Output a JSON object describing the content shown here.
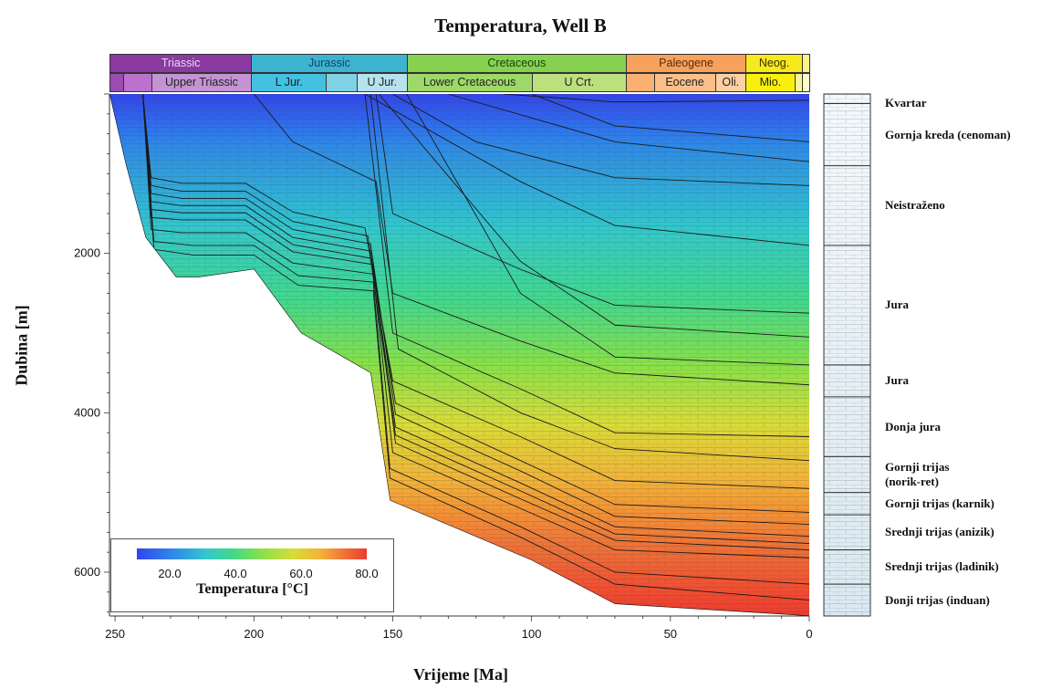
{
  "chart_data": {
    "type": "heatmap",
    "title": "Temperatura, Well B",
    "xlabel": "Vrijeme [Ma]",
    "ylabel": "Dubina [m]",
    "xlim": [
      252,
      0
    ],
    "ylim": [
      0,
      6550
    ],
    "x_ticks": [
      "250",
      "200",
      "150",
      "100",
      "50",
      "0"
    ],
    "x_tick_values": [
      250,
      200,
      150,
      100,
      50,
      0
    ],
    "y_ticks": [
      "2000",
      "4000",
      "6000"
    ],
    "y_tick_values": [
      2000,
      4000,
      6000
    ],
    "colorbar": {
      "label": "Temperatura [°C]",
      "ticks": [
        "20.0",
        "40.0",
        "60.0",
        "80.0"
      ],
      "range": [
        10,
        80
      ],
      "colors": [
        "#3344ee",
        "#2f8ae8",
        "#33c8cc",
        "#44d88a",
        "#8ae04a",
        "#d8dc3a",
        "#f3b238",
        "#f07438",
        "#ee3a30"
      ]
    },
    "periods": [
      {
        "label": "Triassic",
        "start": 252,
        "end": 201,
        "color": "#8a3aa0",
        "text": "#e8d8f0"
      },
      {
        "label": "Jurassic",
        "start": 201,
        "end": 145,
        "color": "#3cb4d0",
        "text": "#1a3f66"
      },
      {
        "label": "Cretaceous",
        "start": 145,
        "end": 66,
        "color": "#86d250",
        "text": "#1a4010"
      },
      {
        "label": "Paleogene",
        "start": 66,
        "end": 23,
        "color": "#f7a15c",
        "text": "#5a2a08"
      },
      {
        "label": "Neog.",
        "start": 23,
        "end": 2.6,
        "color": "#f8e81e",
        "text": "#333300"
      },
      {
        "label": "",
        "start": 2.6,
        "end": 0,
        "color": "#f8f48a",
        "text": "#333300"
      }
    ],
    "epochs": [
      {
        "label": "",
        "start": 252,
        "end": 247,
        "color": "#9a4cb0"
      },
      {
        "label": "",
        "start": 247,
        "end": 237,
        "color": "#bb72cc"
      },
      {
        "label": "Upper Triassic",
        "start": 237,
        "end": 201,
        "color": "#c393d4"
      },
      {
        "label": "L Jur.",
        "start": 201,
        "end": 174,
        "color": "#44c0e0"
      },
      {
        "label": "",
        "start": 174,
        "end": 163,
        "color": "#80d2e6"
      },
      {
        "label": "U Jur.",
        "start": 163,
        "end": 145,
        "color": "#b6e2ee"
      },
      {
        "label": "Lower Cretaceous",
        "start": 145,
        "end": 100,
        "color": "#9ed868"
      },
      {
        "label": "U Crt.",
        "start": 100,
        "end": 66,
        "color": "#bce07e"
      },
      {
        "label": "",
        "start": 66,
        "end": 56,
        "color": "#f9b070"
      },
      {
        "label": "Eocene",
        "start": 56,
        "end": 34,
        "color": "#fbc08a"
      },
      {
        "label": "Oli.",
        "start": 34,
        "end": 23,
        "color": "#fcd0a2"
      },
      {
        "label": "Mio.",
        "start": 23,
        "end": 5.3,
        "color": "#f8f00c"
      },
      {
        "label": "",
        "start": 5.3,
        "end": 2.6,
        "color": "#f8f498"
      },
      {
        "label": "",
        "start": 2.6,
        "end": 0,
        "color": "#fbfac8"
      }
    ],
    "burial_curves": [
      {
        "name": "base",
        "points": [
          [
            252,
            0
          ],
          [
            246,
            900
          ],
          [
            239,
            1800
          ],
          [
            228,
            2300
          ],
          [
            220,
            2300
          ],
          [
            200,
            2200
          ],
          [
            183,
            3000
          ],
          [
            158,
            3500
          ],
          [
            151,
            5100
          ],
          [
            100,
            5850
          ],
          [
            70,
            6400
          ],
          [
            0,
            6550
          ]
        ]
      },
      {
        "points": [
          [
            240,
            0
          ],
          [
            237,
            1050
          ],
          [
            226,
            1120
          ],
          [
            203,
            1120
          ],
          [
            186,
            1480
          ],
          [
            160,
            1680
          ],
          [
            150,
            3600
          ],
          [
            104,
            4300
          ],
          [
            70,
            4850
          ],
          [
            0,
            4950
          ]
        ]
      },
      {
        "points": [
          [
            240,
            0
          ],
          [
            237,
            1150
          ],
          [
            226,
            1220
          ],
          [
            203,
            1220
          ],
          [
            186,
            1600
          ],
          [
            159,
            1780
          ],
          [
            149,
            3880
          ],
          [
            104,
            4600
          ],
          [
            70,
            5150
          ],
          [
            0,
            5250
          ]
        ]
      },
      {
        "points": [
          [
            240,
            0
          ],
          [
            237,
            1250
          ],
          [
            226,
            1310
          ],
          [
            203,
            1310
          ],
          [
            186,
            1700
          ],
          [
            158,
            1880
          ],
          [
            149,
            4020
          ],
          [
            104,
            4730
          ],
          [
            70,
            5300
          ],
          [
            0,
            5400
          ]
        ]
      },
      {
        "points": [
          [
            240,
            0
          ],
          [
            237,
            1350
          ],
          [
            226,
            1400
          ],
          [
            203,
            1400
          ],
          [
            186,
            1800
          ],
          [
            158,
            1970
          ],
          [
            149,
            4180
          ],
          [
            104,
            4880
          ],
          [
            70,
            5430
          ],
          [
            0,
            5550
          ]
        ]
      },
      {
        "points": [
          [
            240,
            0
          ],
          [
            237,
            1450
          ],
          [
            226,
            1490
          ],
          [
            203,
            1490
          ],
          [
            186,
            1890
          ],
          [
            158,
            2060
          ],
          [
            149,
            4280
          ],
          [
            104,
            4980
          ],
          [
            70,
            5520
          ],
          [
            0,
            5640
          ]
        ]
      },
      {
        "points": [
          [
            240,
            0
          ],
          [
            237,
            1550
          ],
          [
            226,
            1580
          ],
          [
            203,
            1580
          ],
          [
            186,
            1980
          ],
          [
            157,
            2140
          ],
          [
            149,
            4380
          ],
          [
            104,
            5080
          ],
          [
            70,
            5600
          ],
          [
            0,
            5720
          ]
        ]
      },
      {
        "points": [
          [
            240,
            0
          ],
          [
            237,
            1700
          ],
          [
            226,
            1740
          ],
          [
            203,
            1740
          ],
          [
            186,
            2120
          ],
          [
            157,
            2260
          ],
          [
            150,
            4500
          ],
          [
            104,
            5200
          ],
          [
            70,
            5720
          ],
          [
            0,
            5820
          ]
        ]
      },
      {
        "points": [
          [
            240,
            0
          ],
          [
            236,
            1850
          ],
          [
            222,
            1900
          ],
          [
            200,
            1900
          ],
          [
            184,
            2280
          ],
          [
            157,
            2360
          ],
          [
            151,
            4700
          ],
          [
            104,
            5430
          ],
          [
            70,
            6000
          ],
          [
            0,
            6150
          ]
        ]
      },
      {
        "points": [
          [
            240,
            0
          ],
          [
            236,
            1950
          ],
          [
            222,
            2020
          ],
          [
            200,
            2020
          ],
          [
            184,
            2400
          ],
          [
            157,
            2470
          ],
          [
            151,
            4820
          ],
          [
            104,
            5560
          ],
          [
            70,
            6150
          ],
          [
            0,
            6350
          ]
        ]
      },
      {
        "points": [
          [
            200,
            0
          ],
          [
            186,
            600
          ],
          [
            156,
            1100
          ],
          [
            150,
            2500
          ],
          [
            104,
            3100
          ],
          [
            70,
            3500
          ],
          [
            0,
            3650
          ]
        ]
      },
      {
        "points": [
          [
            160,
            0
          ],
          [
            150,
            3000
          ],
          [
            104,
            3700
          ],
          [
            70,
            4250
          ],
          [
            0,
            4300
          ]
        ]
      },
      {
        "points": [
          [
            158,
            0
          ],
          [
            148,
            3200
          ],
          [
            104,
            4000
          ],
          [
            70,
            4450
          ],
          [
            0,
            4600
          ]
        ]
      },
      {
        "points": [
          [
            156,
            0
          ],
          [
            150,
            1500
          ],
          [
            104,
            2200
          ],
          [
            70,
            2650
          ],
          [
            0,
            2750
          ]
        ]
      },
      {
        "points": [
          [
            150,
            0
          ],
          [
            120,
            600
          ],
          [
            70,
            1050
          ],
          [
            0,
            1150
          ]
        ]
      },
      {
        "points": [
          [
            100,
            0
          ],
          [
            70,
            400
          ],
          [
            0,
            600
          ]
        ]
      },
      {
        "points": [
          [
            130,
            0
          ],
          [
            70,
            600
          ],
          [
            0,
            850
          ]
        ]
      },
      {
        "points": [
          [
            160,
            0
          ],
          [
            104,
            1100
          ],
          [
            70,
            1650
          ],
          [
            0,
            1900
          ]
        ]
      },
      {
        "points": [
          [
            155,
            0
          ],
          [
            104,
            2100
          ],
          [
            70,
            2900
          ],
          [
            0,
            3050
          ]
        ]
      },
      {
        "points": [
          [
            145,
            0
          ],
          [
            104,
            2500
          ],
          [
            70,
            3300
          ],
          [
            0,
            3400
          ]
        ]
      },
      {
        "points": [
          [
            110,
            0
          ],
          [
            70,
            100
          ],
          [
            0,
            80
          ]
        ]
      }
    ]
  },
  "stratigraphy": [
    {
      "label": "Kvartar",
      "top": 0,
      "bottom": 120
    },
    {
      "label": "Gornja kreda (cenoman)",
      "top": 120,
      "bottom": 900
    },
    {
      "label": "Neistraženo",
      "top": 900,
      "bottom": 1900
    },
    {
      "label": "Jura",
      "top": 1900,
      "bottom": 3400
    },
    {
      "label": "Jura",
      "top": 3400,
      "bottom": 3800
    },
    {
      "label": "Donja jura",
      "top": 3800,
      "bottom": 4550
    },
    {
      "label": "Gornji trijas\n(norik-ret)",
      "top": 4550,
      "bottom": 5000
    },
    {
      "label": "Gornji trijas (karnik)",
      "top": 5000,
      "bottom": 5280
    },
    {
      "label": "Srednji trijas (anizik)",
      "top": 5280,
      "bottom": 5720
    },
    {
      "label": "Srednji trijas (ladinik)",
      "top": 5720,
      "bottom": 6150
    },
    {
      "label": "Donji trijas (induan)",
      "top": 6150,
      "bottom": 6550
    }
  ]
}
